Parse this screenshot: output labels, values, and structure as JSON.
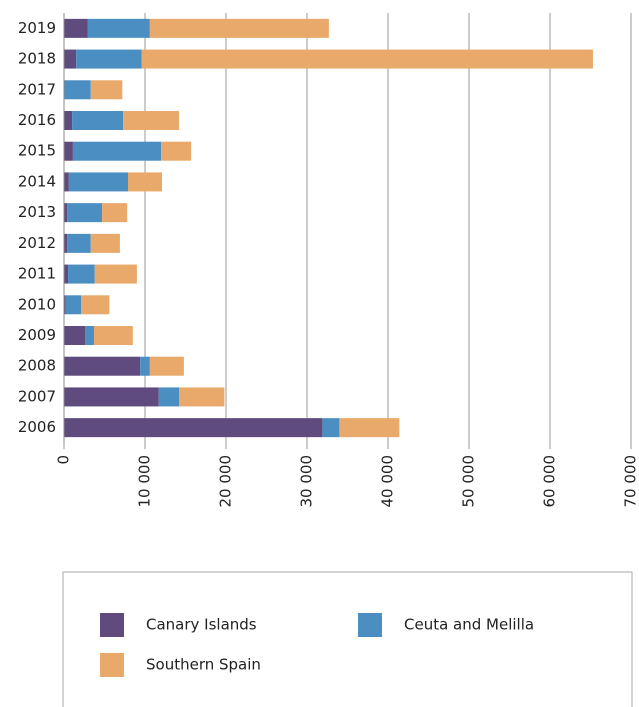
{
  "chart_data": {
    "type": "stacked-barh",
    "categories": [
      "2019",
      "2018",
      "2017",
      "2016",
      "2015",
      "2014",
      "2013",
      "2012",
      "2011",
      "2010",
      "2009",
      "2008",
      "2007",
      "2006"
    ],
    "series": [
      {
        "name": "Canary Islands",
        "color": "#5f4b7d",
        "values": [
          2900,
          1500,
          0,
          1000,
          1100,
          600,
          400,
          400,
          500,
          200,
          2600,
          9400,
          11700,
          31900
        ]
      },
      {
        "name": "Ceuta and Melilla",
        "color": "#4a8ec2",
        "values": [
          7700,
          8100,
          3300,
          6300,
          10900,
          7300,
          4300,
          2900,
          3300,
          1900,
          1100,
          1200,
          2500,
          2100
        ]
      },
      {
        "name": "Southern Spain",
        "color": "#e8a96b",
        "values": [
          22100,
          55700,
          3900,
          6900,
          3700,
          4200,
          3100,
          3600,
          5200,
          3500,
          4800,
          4200,
          5600,
          7400
        ]
      }
    ],
    "xlim": [
      0,
      70000
    ],
    "xticks": [
      0,
      {
        "value": 10000,
        "label": "10 000"
      },
      {
        "value": 20000,
        "label": "20 000"
      },
      {
        "value": 30000,
        "label": "30 000"
      },
      {
        "value": 40000,
        "label": "40 000"
      },
      {
        "value": 50000,
        "label": "50 000"
      },
      {
        "value": 60000,
        "label": "60 000"
      },
      {
        "value": 70000,
        "label": "70 000"
      }
    ],
    "grid": true
  }
}
